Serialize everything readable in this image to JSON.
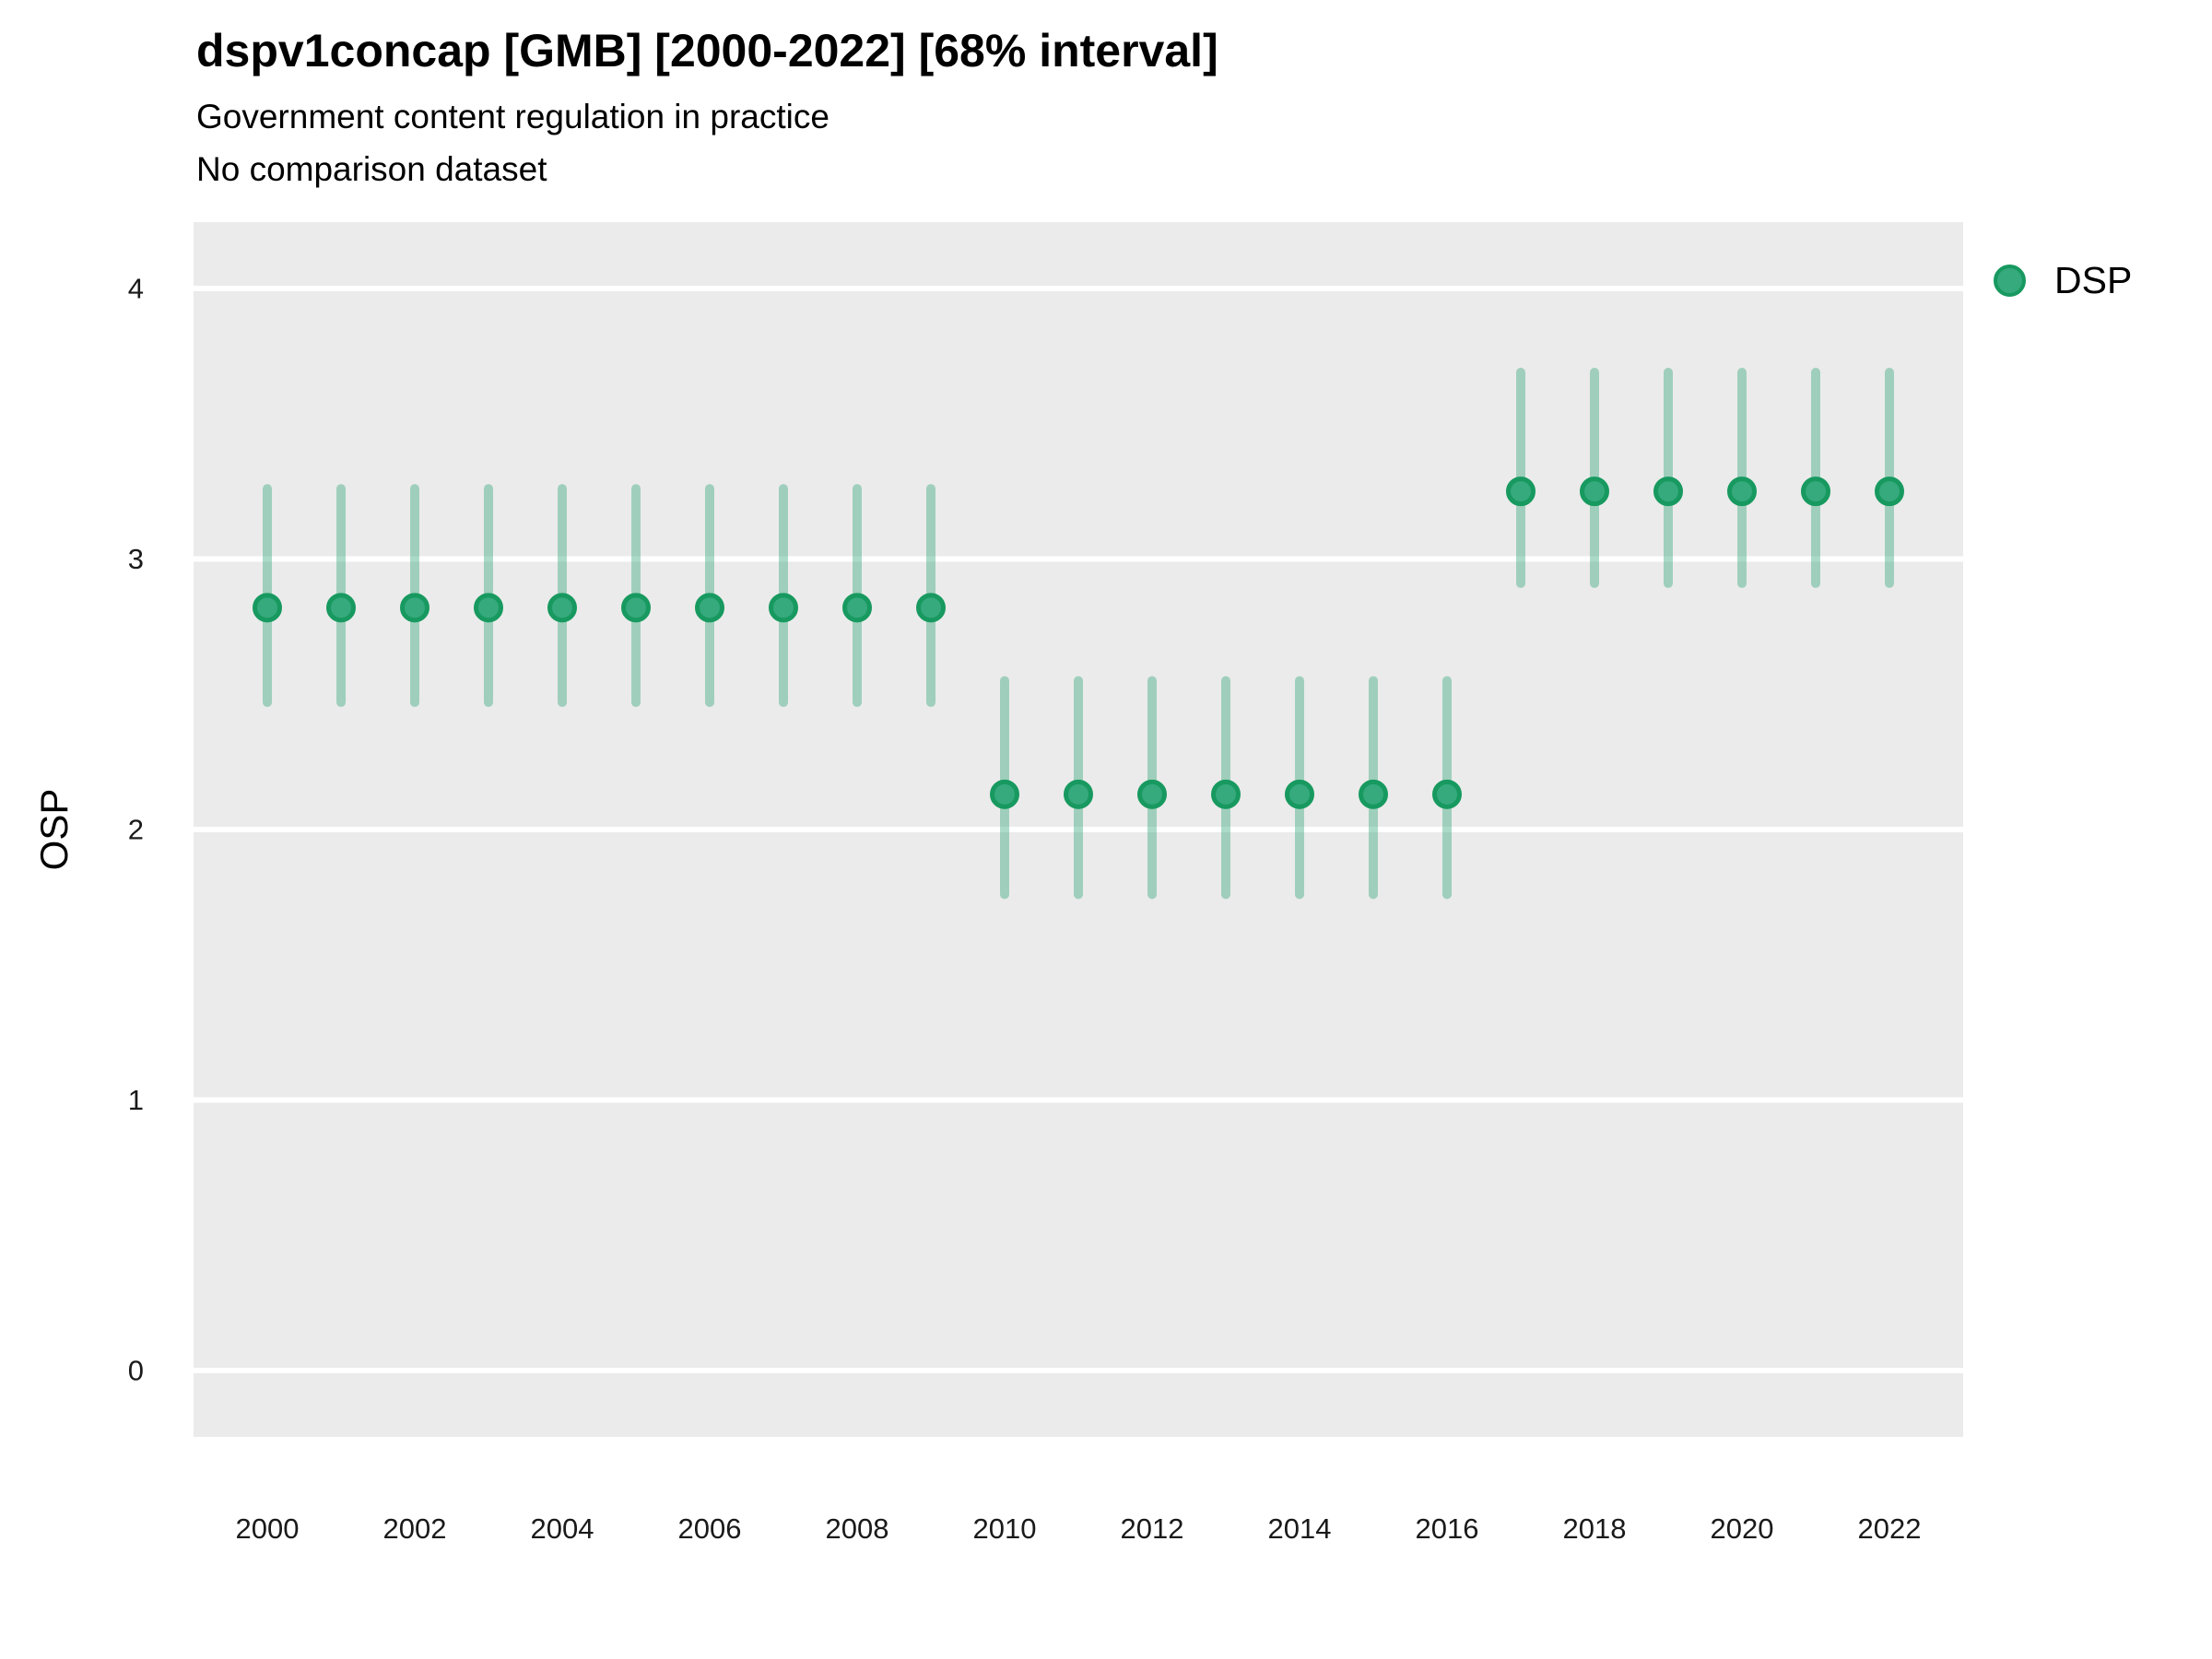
{
  "header": {
    "title": "dspv1concap [GMB] [2000-2022] [68% interval]",
    "subtitle": "Government content regulation in practice",
    "comparison_note": "No comparison dataset"
  },
  "chart_data": {
    "type": "scatter",
    "title": "dspv1concap [GMB] [2000-2022] [68% interval]",
    "subtitle": "Government content regulation in practice",
    "note": "No comparison dataset",
    "interval": "68%",
    "xlabel": "",
    "ylabel": "OSP",
    "ylim": [
      0,
      4
    ],
    "yticks": [
      0,
      1,
      2,
      3,
      4
    ],
    "xticks": [
      2000,
      2002,
      2004,
      2006,
      2008,
      2010,
      2012,
      2014,
      2016,
      2018,
      2020,
      2022
    ],
    "x_range": [
      2000,
      2022
    ],
    "grid": "major-white-on-gray",
    "legend": {
      "position": "top-right",
      "entries": [
        {
          "label": "DSP",
          "color": "#36a97d"
        }
      ]
    },
    "colors": {
      "point_fill": "#36a97d",
      "point_stroke": "#17995f",
      "interval_bar": "rgba(54,169,125,0.42)",
      "panel_bg": "#ebebeb",
      "gridline": "#ffffff",
      "tick_text": "#1a1a1a"
    },
    "series": [
      {
        "name": "DSP",
        "points": [
          {
            "x": 2000,
            "y": 2.82,
            "lo": 2.47,
            "hi": 3.26
          },
          {
            "x": 2001,
            "y": 2.82,
            "lo": 2.47,
            "hi": 3.26
          },
          {
            "x": 2002,
            "y": 2.82,
            "lo": 2.47,
            "hi": 3.26
          },
          {
            "x": 2003,
            "y": 2.82,
            "lo": 2.47,
            "hi": 3.26
          },
          {
            "x": 2004,
            "y": 2.82,
            "lo": 2.47,
            "hi": 3.26
          },
          {
            "x": 2005,
            "y": 2.82,
            "lo": 2.47,
            "hi": 3.26
          },
          {
            "x": 2006,
            "y": 2.82,
            "lo": 2.47,
            "hi": 3.26
          },
          {
            "x": 2007,
            "y": 2.82,
            "lo": 2.47,
            "hi": 3.26
          },
          {
            "x": 2008,
            "y": 2.82,
            "lo": 2.47,
            "hi": 3.26
          },
          {
            "x": 2009,
            "y": 2.82,
            "lo": 2.47,
            "hi": 3.26
          },
          {
            "x": 2010,
            "y": 2.13,
            "lo": 1.76,
            "hi": 2.55
          },
          {
            "x": 2011,
            "y": 2.13,
            "lo": 1.76,
            "hi": 2.55
          },
          {
            "x": 2012,
            "y": 2.13,
            "lo": 1.76,
            "hi": 2.55
          },
          {
            "x": 2013,
            "y": 2.13,
            "lo": 1.76,
            "hi": 2.55
          },
          {
            "x": 2014,
            "y": 2.13,
            "lo": 1.76,
            "hi": 2.55
          },
          {
            "x": 2015,
            "y": 2.13,
            "lo": 1.76,
            "hi": 2.55
          },
          {
            "x": 2016,
            "y": 2.13,
            "lo": 1.76,
            "hi": 2.55
          },
          {
            "x": 2017,
            "y": 3.25,
            "lo": 2.91,
            "hi": 3.69
          },
          {
            "x": 2018,
            "y": 3.25,
            "lo": 2.91,
            "hi": 3.69
          },
          {
            "x": 2019,
            "y": 3.25,
            "lo": 2.91,
            "hi": 3.69
          },
          {
            "x": 2020,
            "y": 3.25,
            "lo": 2.91,
            "hi": 3.69
          },
          {
            "x": 2021,
            "y": 3.25,
            "lo": 2.91,
            "hi": 3.69
          },
          {
            "x": 2022,
            "y": 3.25,
            "lo": 2.91,
            "hi": 3.69
          }
        ]
      }
    ]
  }
}
